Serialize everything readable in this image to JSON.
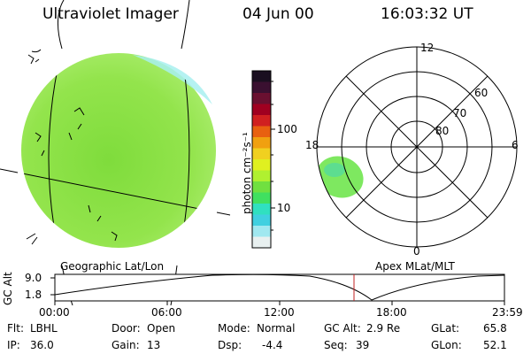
{
  "header": {
    "instrument": "Ultraviolet Imager",
    "date": "04 Jun 00",
    "time": "16:03:32 UT"
  },
  "colorbar": {
    "unit_label": "photon cm⁻²s⁻¹",
    "tick_labels": [
      "100",
      "10"
    ],
    "colors_top_to_bottom": [
      "#1a0f20",
      "#3a1030",
      "#6a1030",
      "#a00020",
      "#d02020",
      "#e86010",
      "#f0a010",
      "#f0d020",
      "#e0f020",
      "#b0f030",
      "#70e040",
      "#40e060",
      "#30e0c0",
      "#40d0e0",
      "#a0e8f0",
      "#e8f0f0"
    ]
  },
  "globe_panel": {
    "label": "Geographic Lat/Lon",
    "image_fill": "#8fe34a",
    "edge_fill": "#a8f0f0"
  },
  "polar_panel": {
    "label": "Apex MLat/MLT",
    "mlt_labels": {
      "top": "12",
      "left": "18",
      "right": "6",
      "bottom": "0"
    },
    "mlat_labels": [
      "60",
      "70",
      "80"
    ],
    "blob_fill": "#7ee860"
  },
  "timeline": {
    "y_axis_label": "GC Alt",
    "y_ticks": [
      "9.0",
      "1.8"
    ],
    "x_ticks": [
      "00:00",
      "06:00",
      "12:00",
      "18:00",
      "23:59"
    ],
    "marker_color": "#c02020"
  },
  "info": {
    "row1": [
      {
        "label": "Flt:",
        "value": "LBHL"
      },
      {
        "label": "Door:",
        "value": "Open"
      },
      {
        "label": "Mode:",
        "value": "Normal"
      },
      {
        "label": "GC Alt:",
        "value": "2.9 Re"
      },
      {
        "label": "GLat:",
        "value": "65.8"
      }
    ],
    "row2": [
      {
        "label": "IP:",
        "value": "36.0"
      },
      {
        "label": "Gain:",
        "value": "13"
      },
      {
        "label": "Dsp:",
        "value": "-4.4"
      },
      {
        "label": "Seq:",
        "value": "39"
      },
      {
        "label": "GLon:",
        "value": "52.1"
      }
    ]
  }
}
